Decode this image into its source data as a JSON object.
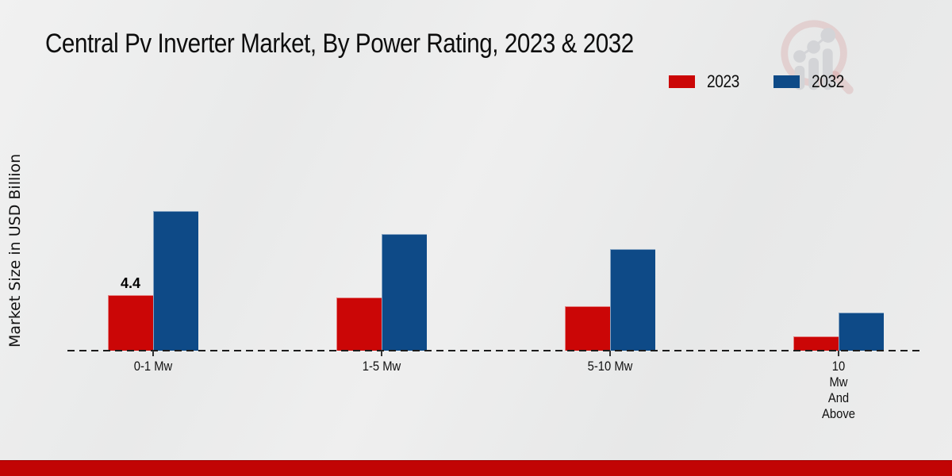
{
  "page": {
    "background": "#eaebeb",
    "footer_bar_color": "#c10404"
  },
  "title": "Central Pv Inverter Market, By Power Rating, 2023 & 2032",
  "y_axis": {
    "label": "Market Size in USD Billion"
  },
  "legend": {
    "items": [
      {
        "label": "2023",
        "color": "#cb0606"
      },
      {
        "label": "2032",
        "color": "#0e4a87"
      }
    ]
  },
  "chart_data": {
    "type": "bar",
    "title": "Central Pv Inverter Market, By Power Rating, 2023 & 2032",
    "xlabel": "",
    "ylabel": "Market Size in USD Billion",
    "categories": [
      "0-1 Mw",
      "1-5 Mw",
      "5-10 Mw",
      "10 Mw And Above"
    ],
    "category_label_lines": [
      [
        "0-1 Mw"
      ],
      [
        "1-5 Mw"
      ],
      [
        "5-10 Mw"
      ],
      [
        "10",
        "Mw",
        "And",
        "Above"
      ]
    ],
    "series": [
      {
        "name": "2023",
        "color": "#cb0606",
        "values": [
          4.4,
          4.2,
          3.5,
          1.1
        ]
      },
      {
        "name": "2032",
        "color": "#0e4a87",
        "values": [
          11.0,
          9.2,
          8.0,
          3.0
        ]
      }
    ],
    "data_labels": [
      {
        "series": "2023",
        "category": "0-1 Mw",
        "text": "4.4"
      }
    ],
    "ylim": [
      0,
      12
    ],
    "grid": false,
    "y_axis_ticks_visible": false,
    "legend_position": "top-right",
    "baseline_style": "dashed"
  },
  "watermark": {
    "name": "magnifier-bar-chart-logo"
  }
}
